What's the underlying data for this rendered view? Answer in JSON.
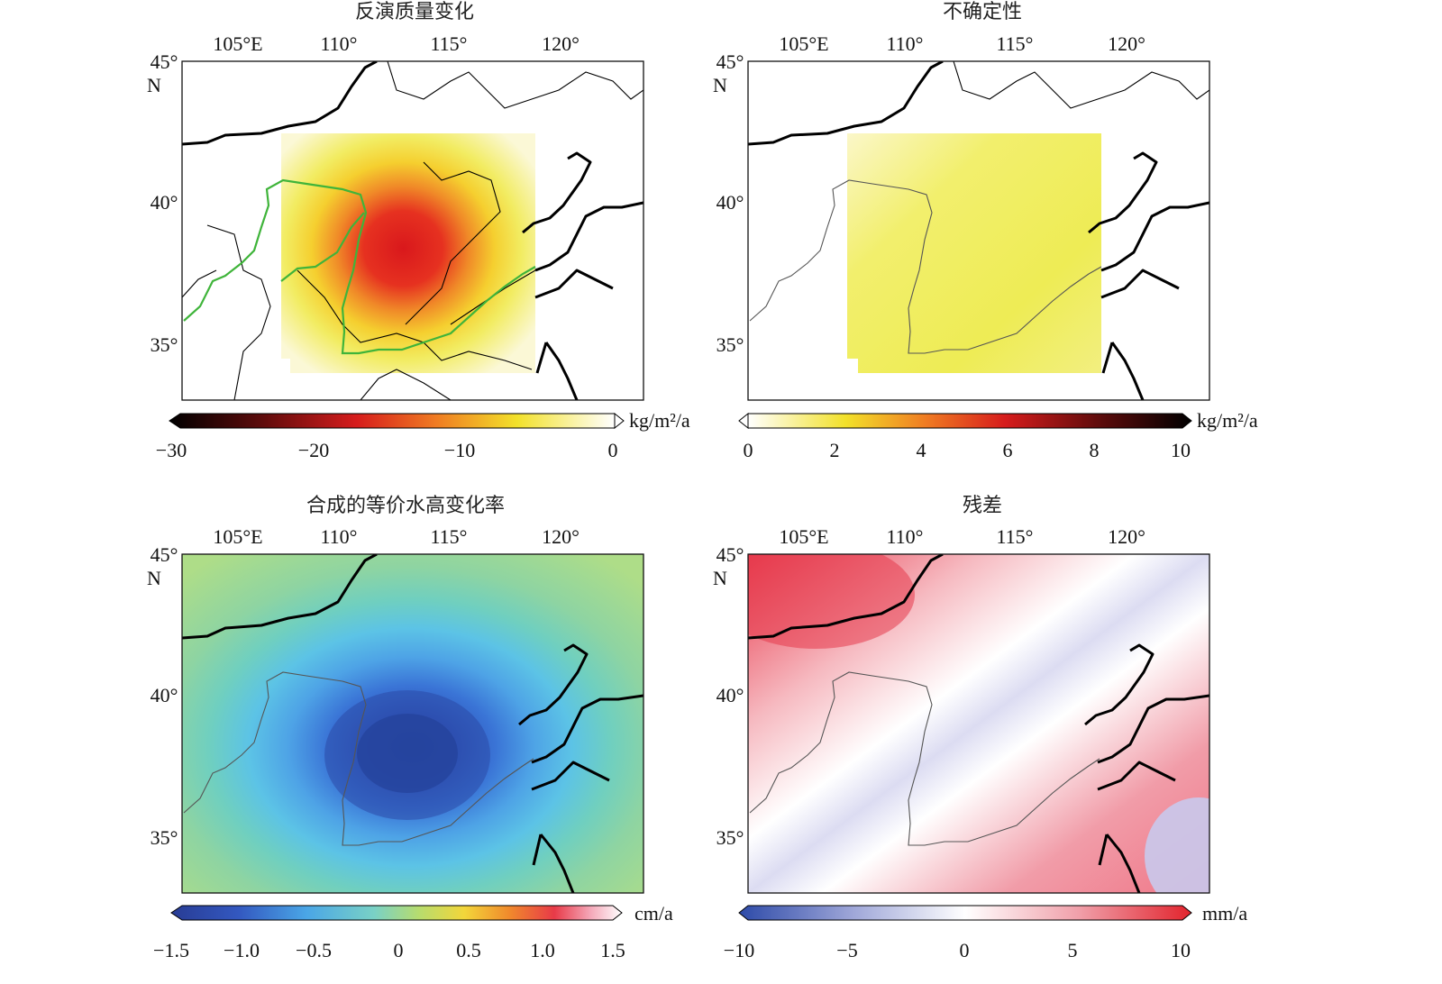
{
  "panels": [
    {
      "title": "反演质量变化",
      "lon_labels": [
        "105°E",
        "110°",
        "115°",
        "120°"
      ],
      "lat_labels": [
        "45°",
        "40°",
        "35°"
      ],
      "lat_unit": "N",
      "colorbar": {
        "unit": "kg/m²/a",
        "ticks": [
          "−30",
          "−20",
          "−10",
          "0"
        ],
        "range": [
          -30,
          0
        ],
        "colormap": "white-yellow-orange-red-black reversed"
      }
    },
    {
      "title": "不确定性",
      "lon_labels": [
        "105°E",
        "110°",
        "115°",
        "120°"
      ],
      "lat_labels": [
        "45°",
        "40°",
        "35°"
      ],
      "lat_unit": "N",
      "colorbar": {
        "unit": "kg/m²/a",
        "ticks": [
          "0",
          "2",
          "4",
          "6",
          "8",
          "10"
        ],
        "range": [
          0,
          10
        ],
        "colormap": "white-yellow-orange-red-black"
      }
    },
    {
      "title": "合成的等价水高变化率",
      "lon_labels": [
        "105°E",
        "110°",
        "115°",
        "120°"
      ],
      "lat_labels": [
        "45°",
        "40°",
        "35°"
      ],
      "lat_unit": "N",
      "colorbar": {
        "unit": "cm/a",
        "ticks": [
          "−1.5",
          "−1.0",
          "−0.5",
          "0",
          "0.5",
          "1.0",
          "1.5"
        ],
        "range": [
          -1.5,
          1.5
        ],
        "colormap": "blue-cyan-green-yellow-red-white"
      }
    },
    {
      "title": "残差",
      "lon_labels": [
        "105°E",
        "110°",
        "115°",
        "120°"
      ],
      "lat_labels": [
        "45°",
        "40°",
        "35°"
      ],
      "lat_unit": "N",
      "colorbar": {
        "unit": "mm/a",
        "ticks": [
          "−10",
          "−5",
          "0",
          "5",
          "10"
        ],
        "range": [
          -10,
          10
        ],
        "colormap": "blue-white-red"
      }
    }
  ],
  "colors": {
    "basin_boundary": "#3fb43a",
    "coastline": "#000000"
  }
}
